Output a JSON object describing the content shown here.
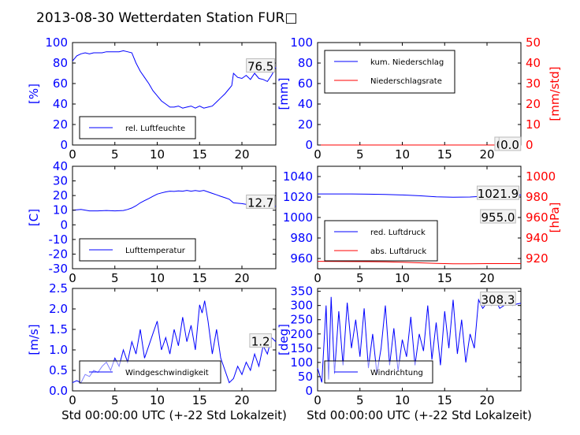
{
  "title": "2013-08-30 Wetterdaten Station FUR□",
  "chart_data": [
    {
      "type": "line",
      "id": "humidity",
      "ylabel": "[%]",
      "ylim": [
        0,
        100
      ],
      "yticks": [
        0,
        20,
        40,
        60,
        80,
        100
      ],
      "xlim": [
        0,
        24
      ],
      "xticks": [
        0,
        5,
        10,
        15,
        20
      ],
      "xlabel": "",
      "legend": {
        "placement": "lower-left",
        "entries": [
          "rel. Luftfeuchte"
        ]
      },
      "annotations": [
        {
          "text": "76.5",
          "x": 22.2,
          "y": 76.5
        }
      ],
      "series": [
        {
          "name": "rel. Luftfeuchte",
          "color": "#0000ff",
          "x": [
            0,
            0.5,
            1,
            1.5,
            2,
            2.5,
            3,
            3.5,
            4,
            4.5,
            5,
            5.5,
            6,
            6.5,
            7,
            7.2,
            7.5,
            8,
            8.5,
            9,
            9.5,
            10,
            10.5,
            11,
            11.5,
            12,
            12.5,
            13,
            13.5,
            14,
            14.5,
            15,
            15.5,
            16,
            16.5,
            17,
            17.5,
            18,
            18.5,
            18.8,
            19,
            19.5,
            20,
            20.5,
            21,
            21.5,
            22,
            22.5,
            23,
            23.5,
            24
          ],
          "y": [
            82,
            87,
            89,
            90,
            89,
            90,
            90,
            90,
            91,
            91,
            91,
            91,
            92,
            91,
            90,
            86,
            80,
            72,
            66,
            60,
            53,
            48,
            43,
            40,
            37,
            37,
            38,
            36,
            37,
            38,
            36,
            38,
            36,
            37,
            38,
            42,
            46,
            50,
            55,
            58,
            70,
            66,
            65,
            68,
            64,
            70,
            65,
            64,
            62,
            68,
            76
          ]
        }
      ]
    },
    {
      "type": "line",
      "id": "precipitation",
      "ylabel": "[mm]",
      "ylim": [
        0,
        100
      ],
      "yticks": [
        0,
        20,
        40,
        60,
        80,
        100
      ],
      "y2label": "[mm/std]",
      "y2lim": [
        0,
        50
      ],
      "y2ticks": [
        0,
        10,
        20,
        30,
        40,
        50
      ],
      "xlim": [
        0,
        24
      ],
      "xticks": [
        0,
        5,
        10,
        15,
        20
      ],
      "xlabel": "",
      "legend": {
        "placement": "upper-left",
        "entries": [
          "kum. Niederschlag",
          "Niederschlagsrate"
        ]
      },
      "annotations": [
        {
          "text": "0.0",
          "x": 22.2,
          "y": 0
        },
        {
          "text": "0.0",
          "x": 22.7,
          "y": 0
        }
      ],
      "series": [
        {
          "name": "kum. Niederschlag",
          "color": "#0000ff",
          "x": [
            0,
            24
          ],
          "y": [
            0,
            0
          ]
        },
        {
          "name": "Niederschlagsrate",
          "color": "#ff0000",
          "x": [
            0,
            24
          ],
          "y": [
            0,
            0
          ]
        }
      ]
    },
    {
      "type": "line",
      "id": "temperature",
      "ylabel": "[C]",
      "ylim": [
        -30,
        40
      ],
      "yticks": [
        -30,
        -20,
        -10,
        0,
        10,
        20,
        30,
        40
      ],
      "xlim": [
        0,
        24
      ],
      "xticks": [
        0,
        5,
        10,
        15,
        20
      ],
      "xlabel": "",
      "legend": {
        "placement": "lower-left",
        "entries": [
          "Lufttemperatur"
        ]
      },
      "annotations": [
        {
          "text": "12.7",
          "x": 22.2,
          "y": 15
        }
      ],
      "series": [
        {
          "name": "Lufttemperatur",
          "color": "#0000ff",
          "x": [
            0,
            1,
            2,
            3,
            4,
            5,
            6,
            6.5,
            7,
            7.5,
            8,
            8.5,
            9,
            9.5,
            10,
            10.5,
            11,
            11.5,
            12,
            12.5,
            13,
            13.5,
            14,
            14.5,
            15,
            15.5,
            16,
            16.5,
            17,
            17.5,
            18,
            18.5,
            19,
            20,
            21,
            22,
            23,
            24
          ],
          "y": [
            10,
            10.5,
            9.5,
            9.5,
            9.8,
            9.5,
            9.8,
            10.5,
            11.5,
            13,
            15,
            16.5,
            18,
            19.5,
            21,
            21.8,
            22.5,
            23,
            22.8,
            23.2,
            23,
            23.5,
            23,
            23.4,
            23,
            23.5,
            22.5,
            21.5,
            20.5,
            19.5,
            18.5,
            17.5,
            15,
            14.5,
            13.5,
            13,
            12.8,
            12.7
          ]
        }
      ]
    },
    {
      "type": "line",
      "id": "pressure",
      "ylabel": "",
      "ylim": [
        950,
        1050
      ],
      "yticks": [
        960,
        980,
        1000,
        1020,
        1040
      ],
      "y2label": "[hPa]",
      "y2lim": [
        910,
        1010
      ],
      "y2ticks": [
        920,
        940,
        960,
        980,
        1000
      ],
      "xlim": [
        0,
        24
      ],
      "xticks": [
        0,
        5,
        10,
        15,
        20
      ],
      "xlabel": "",
      "legend": {
        "placement": "lower-left",
        "entries": [
          "red. Luftdruck",
          "abs. Luftdruck"
        ]
      },
      "annotations": [
        {
          "text": "1021.9",
          "x": 21.3,
          "y": 1023
        },
        {
          "text": "955.0",
          "x": 21.3,
          "y": 1000
        }
      ],
      "series": [
        {
          "name": "red. Luftdruck",
          "color": "#0000ff",
          "x": [
            0,
            2,
            4,
            6,
            8,
            10,
            12,
            14,
            16,
            18,
            20,
            22,
            24
          ],
          "y": [
            1023,
            1023,
            1023,
            1022.8,
            1022.5,
            1022,
            1021.2,
            1020.2,
            1019.8,
            1020,
            1021,
            1021.6,
            1021.9
          ]
        },
        {
          "name": "abs. Luftdruck",
          "color": "#ff0000",
          "x": [
            0,
            2,
            4,
            6,
            8,
            10,
            12,
            14,
            16,
            18,
            20,
            22,
            24
          ],
          "y": [
            957.2,
            957.1,
            957,
            956.9,
            956.7,
            956.3,
            955.8,
            955.2,
            954.8,
            954.8,
            955,
            955,
            955
          ]
        }
      ]
    },
    {
      "type": "line",
      "id": "windspeed",
      "ylabel": "[m/s]",
      "ylim": [
        0,
        2.5
      ],
      "yticks": [
        0.0,
        0.5,
        1.0,
        1.5,
        2.0,
        2.5
      ],
      "xlim": [
        0,
        24
      ],
      "xticks": [
        0,
        5,
        10,
        15,
        20
      ],
      "xlabel": "Std 00:00:00 UTC (+-22 Std Lokalzeit)",
      "legend": {
        "placement": "lower-left",
        "entries": [
          "Windgeschwindigkeit"
        ]
      },
      "annotations": [
        {
          "text": "1.2",
          "x": 22.2,
          "y": 1.2
        }
      ],
      "series": [
        {
          "name": "Windgeschwindigkeit",
          "color": "#0000ff",
          "x": [
            0,
            0.5,
            1,
            1.5,
            2,
            2.5,
            3,
            3.5,
            4,
            4.5,
            5,
            5.5,
            6,
            6.5,
            7,
            7.5,
            8,
            8.5,
            9,
            9.5,
            10,
            10.5,
            11,
            11.5,
            12,
            12.5,
            13,
            13.5,
            14,
            14.5,
            15,
            15.3,
            15.6,
            16,
            16.5,
            17,
            17.5,
            18,
            18.5,
            19,
            19.5,
            20,
            20.5,
            21,
            21.5,
            22,
            22.5,
            23,
            23.5,
            24
          ],
          "y": [
            0.2,
            0.25,
            0.2,
            0.4,
            0.35,
            0.5,
            0.45,
            0.6,
            0.7,
            0.5,
            0.8,
            0.6,
            1.0,
            0.7,
            1.2,
            0.9,
            1.5,
            0.8,
            1.1,
            1.4,
            1.7,
            1.0,
            1.3,
            0.9,
            1.5,
            1.1,
            1.8,
            1.2,
            1.6,
            1.0,
            2.1,
            1.9,
            2.2,
            1.7,
            0.9,
            1.5,
            0.8,
            0.5,
            0.2,
            0.3,
            0.6,
            0.4,
            0.7,
            0.5,
            0.9,
            0.6,
            1.1,
            0.9,
            1.3,
            1.2
          ]
        }
      ]
    },
    {
      "type": "line",
      "id": "winddirection",
      "ylabel": "[deg]",
      "ylim": [
        0,
        360
      ],
      "yticks": [
        0,
        50,
        100,
        150,
        200,
        250,
        300,
        350
      ],
      "xlim": [
        0,
        24
      ],
      "xticks": [
        0,
        5,
        10,
        15,
        20
      ],
      "xlabel": "Std 00:00:00 UTC (+-22 Std Lokalzeit)",
      "legend": {
        "placement": "lower-left",
        "entries": [
          "Windrichtung"
        ]
      },
      "annotations": [
        {
          "text": "308.3",
          "x": 21.3,
          "y": 320
        }
      ],
      "series": [
        {
          "name": "Windrichtung",
          "color": "#0000ff",
          "x": [
            0,
            0.5,
            1,
            1.3,
            1.6,
            2,
            2.5,
            3,
            3.5,
            4,
            4.5,
            5,
            5.5,
            6,
            6.5,
            7,
            7.5,
            8,
            8.5,
            9,
            9.5,
            10,
            10.5,
            11,
            11.5,
            12,
            12.5,
            13,
            13.5,
            14,
            14.5,
            15,
            15.5,
            16,
            16.5,
            17,
            17.5,
            18,
            18.5,
            19,
            19.5,
            20,
            20.5,
            21,
            21.5,
            22,
            22.5,
            23,
            23.5,
            24
          ],
          "y": [
            80,
            30,
            300,
            40,
            330,
            60,
            280,
            90,
            310,
            150,
            250,
            120,
            290,
            80,
            200,
            60,
            150,
            300,
            90,
            220,
            70,
            180,
            120,
            260,
            90,
            200,
            140,
            300,
            110,
            240,
            90,
            280,
            150,
            320,
            130,
            250,
            100,
            200,
            150,
            320,
            290,
            310,
            300,
            320,
            290,
            300,
            310,
            300,
            305,
            308
          ]
        }
      ]
    }
  ]
}
